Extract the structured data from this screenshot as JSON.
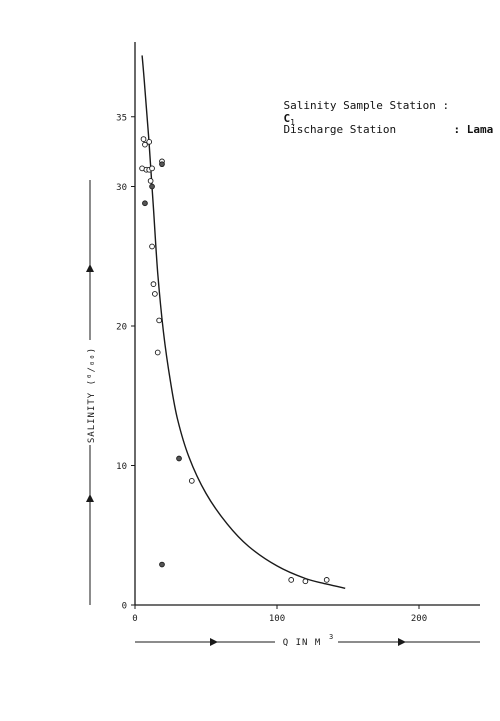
{
  "chart_data": {
    "type": "scatter",
    "annotations": {
      "salinity_station_label": "Salinity Sample Station :",
      "salinity_station_value": "C",
      "salinity_station_sub": "1",
      "discharge_station_label": "Discharge Station",
      "discharge_station_value": ": Lama"
    },
    "xlabel": "Q IN M",
    "xlabel_sup": "3",
    "ylabel": "SALINITY (⁰/₀₀)",
    "xlim": [
      0,
      240
    ],
    "ylim": [
      0,
      40
    ],
    "x_ticks": [
      0,
      100,
      200
    ],
    "x_tick_labels": [
      "0",
      "100",
      "200"
    ],
    "y_ticks": [
      0,
      10,
      20,
      30,
      35
    ],
    "y_tick_labels": [
      "0",
      "10",
      "20",
      "30",
      "35"
    ],
    "grid": false,
    "series": [
      {
        "marker": "open",
        "points": [
          [
            6,
            33.4
          ],
          [
            7,
            33.0
          ],
          [
            10,
            33.2
          ],
          [
            5,
            31.3
          ],
          [
            8,
            31.2
          ],
          [
            10,
            31.2
          ],
          [
            12,
            31.3
          ],
          [
            11,
            30.4
          ],
          [
            12,
            25.7
          ],
          [
            13,
            23.0
          ],
          [
            14,
            22.3
          ],
          [
            17,
            20.4
          ],
          [
            16,
            18.1
          ],
          [
            40,
            8.9
          ],
          [
            110,
            1.8
          ],
          [
            120,
            1.7
          ],
          [
            135,
            1.8
          ],
          [
            19,
            31.8
          ]
        ]
      },
      {
        "marker": "filled",
        "points": [
          [
            7,
            28.8
          ],
          [
            12,
            30.0
          ],
          [
            19,
            31.6
          ],
          [
            31,
            10.5
          ],
          [
            19,
            2.9
          ]
        ]
      }
    ],
    "fitted_curve": [
      [
        5,
        39.4
      ],
      [
        7,
        37.0
      ],
      [
        10,
        33.0
      ],
      [
        13,
        28.4
      ],
      [
        16,
        23.8
      ],
      [
        20,
        19.6
      ],
      [
        25,
        16.0
      ],
      [
        30,
        13.3
      ],
      [
        38,
        10.6
      ],
      [
        50,
        8.0
      ],
      [
        65,
        5.8
      ],
      [
        80,
        4.2
      ],
      [
        100,
        2.8
      ],
      [
        120,
        1.9
      ],
      [
        135,
        1.5
      ],
      [
        148,
        1.2
      ]
    ]
  }
}
